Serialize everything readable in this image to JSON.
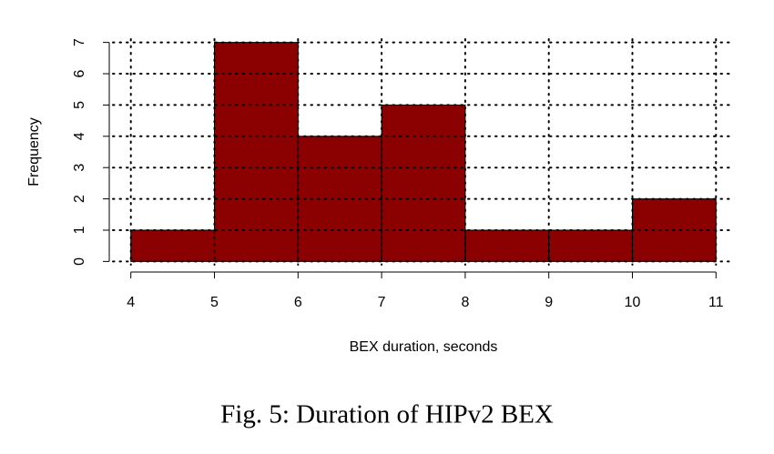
{
  "chart_data": {
    "type": "histogram",
    "caption": "Fig. 5: Duration of HIPv2 BEX",
    "xlabel": "BEX duration, seconds",
    "ylabel": "Frequency",
    "bins": [
      4,
      5,
      6,
      7,
      8,
      9,
      10,
      11
    ],
    "values": [
      1,
      7,
      4,
      5,
      1,
      1,
      2
    ],
    "color": "#8b0000",
    "edgecolor": "#000000",
    "xlim": [
      3.72,
      11.28
    ],
    "ylim": [
      -0.28,
      7.28
    ],
    "xticks": [
      4,
      5,
      6,
      7,
      8,
      9,
      10,
      11
    ],
    "yticks": [
      0,
      1,
      2,
      3,
      4,
      5,
      6,
      7
    ],
    "grid": true
  }
}
